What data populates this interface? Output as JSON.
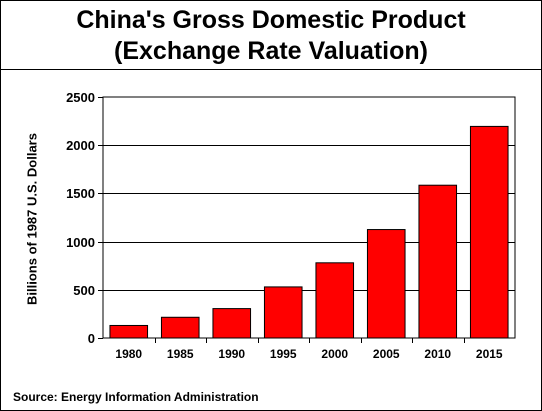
{
  "title_line1": "China's Gross Domestic Product",
  "title_line2": "(Exchange Rate Valuation)",
  "source": "Source: Energy Information Administration",
  "colors": {
    "bar": "#ff0000",
    "axis": "#000000",
    "grid": "#000000"
  },
  "chart_data": {
    "type": "bar",
    "categories": [
      "1980",
      "1985",
      "1990",
      "1995",
      "2000",
      "2005",
      "2010",
      "2015"
    ],
    "values": [
      130,
      215,
      305,
      530,
      780,
      1125,
      1585,
      2195
    ],
    "ylabel": "Billions of 1987 U.S. Dollars",
    "xlabel": "",
    "ylim": [
      0,
      2500
    ],
    "yticks": [
      0,
      500,
      1000,
      1500,
      2000,
      2500
    ],
    "grid": "horizontal"
  }
}
